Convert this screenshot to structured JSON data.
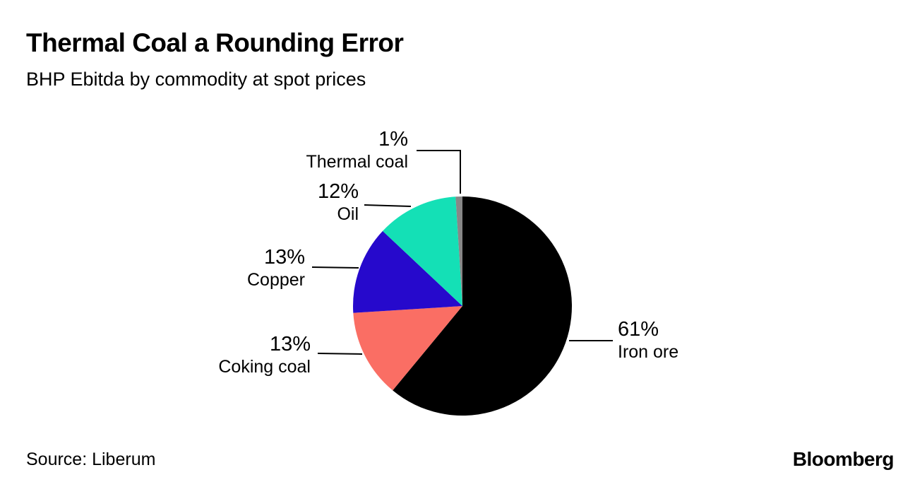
{
  "chart_data": {
    "type": "pie",
    "title": "Thermal Coal a Rounding Error",
    "subtitle": "BHP Ebitda by commodity at spot prices",
    "source": "Source: Liberum",
    "brand": "Bloomberg",
    "unit": "%",
    "slices": [
      {
        "label": "Iron ore",
        "value": 61,
        "pct_label": "61%",
        "color": "#000000"
      },
      {
        "label": "Coking coal",
        "value": 13,
        "pct_label": "13%",
        "color": "#fa6e64"
      },
      {
        "label": "Copper",
        "value": 13,
        "pct_label": "13%",
        "color": "#2609cc"
      },
      {
        "label": "Oil",
        "value": 12,
        "pct_label": "12%",
        "color": "#14e0b6"
      },
      {
        "label": "Thermal coal",
        "value": 1,
        "pct_label": "1%",
        "color": "#878787"
      }
    ],
    "layout_hints": {
      "start_angle_deg": 0,
      "direction": "clockwise",
      "labels": "outside-with-leader-lines",
      "legend": "none"
    }
  }
}
